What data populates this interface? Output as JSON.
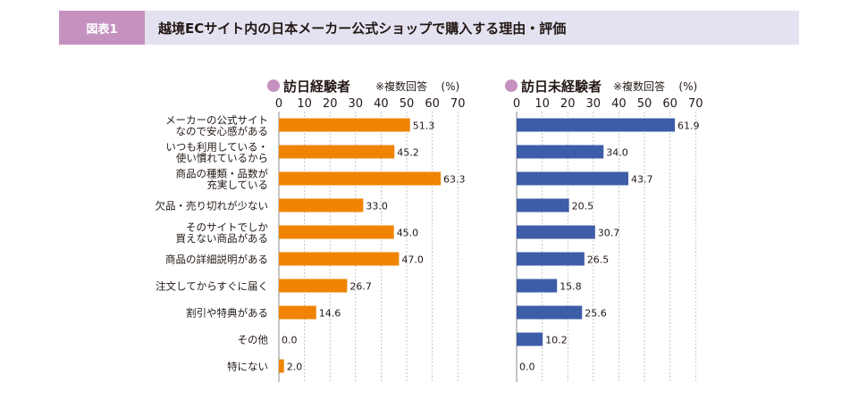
{
  "header": {
    "label": "図表1",
    "title": "越境ECサイト内の日本メーカー公式ショップで購入する理由・評価"
  },
  "colors": {
    "header_label_bg": "#c592c0",
    "header_bg": "#e4e2f0",
    "legend_dot": "#c592c0",
    "series_visited": "#f08300",
    "series_not_visited": "#3d5da8",
    "grid": "#a0a0a0"
  },
  "chart_data": [
    {
      "type": "bar",
      "orientation": "horizontal",
      "title": "訪日経験者",
      "note": "※複数回答",
      "unit": "(%)",
      "xlim": [
        0,
        70
      ],
      "ticks": [
        0,
        10,
        20,
        30,
        40,
        50,
        60,
        70
      ],
      "grid": true,
      "categories": [
        [
          "メーカーの公式サイト",
          "なので安心感がある"
        ],
        [
          "いつも利用している・",
          "使い慣れているから"
        ],
        [
          "商品の種類・品数が",
          "充実している"
        ],
        [
          "欠品・売り切れが少ない"
        ],
        [
          "そのサイトでしか",
          "買えない商品がある"
        ],
        [
          "商品の詳細説明がある"
        ],
        [
          "注文してからすぐに届く"
        ],
        [
          "割引や特典がある"
        ],
        [
          "その他"
        ],
        [
          "特にない"
        ]
      ],
      "values": [
        51.3,
        45.2,
        63.3,
        33.0,
        45.0,
        47.0,
        26.7,
        14.6,
        0.0,
        2.0
      ],
      "value_labels": [
        "51.3",
        "45.2",
        "63.3",
        "33.0",
        "45.0",
        "47.0",
        "26.7",
        "14.6",
        "0.0",
        "2.0"
      ]
    },
    {
      "type": "bar",
      "orientation": "horizontal",
      "title": "訪日未経験者",
      "note": "※複数回答",
      "unit": "(%)",
      "xlim": [
        0,
        70
      ],
      "ticks": [
        0,
        10,
        20,
        30,
        40,
        50,
        60,
        70
      ],
      "grid": true,
      "categories": [
        [
          "メーカーの公式サイト",
          "なので安心感がある"
        ],
        [
          "いつも利用している・",
          "使い慣れているから"
        ],
        [
          "商品の種類・品数が",
          "充実している"
        ],
        [
          "欠品・売り切れが少ない"
        ],
        [
          "そのサイトでしか",
          "買えない商品がある"
        ],
        [
          "商品の詳細説明がある"
        ],
        [
          "注文してからすぐに届く"
        ],
        [
          "割引や特典がある"
        ],
        [
          "その他"
        ],
        [
          "特にない"
        ]
      ],
      "values": [
        61.9,
        34.0,
        43.7,
        20.5,
        30.7,
        26.5,
        15.8,
        25.6,
        10.2,
        0.0
      ],
      "value_labels": [
        "61.9",
        "34.0",
        "43.7",
        "20.5",
        "30.7",
        "26.5",
        "15.8",
        "25.6",
        "10.2",
        "0.0"
      ]
    }
  ]
}
